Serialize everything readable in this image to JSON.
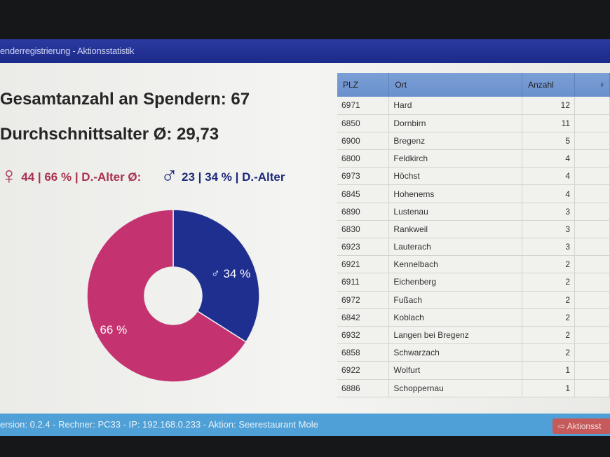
{
  "window": {
    "title": "enderregistrierung - Aktionsstatistik"
  },
  "summary": {
    "total": "Gesamtanzahl an Spendern: 67",
    "avg_age": "Durchschnittsalter Ø: 29,73",
    "female_symbol": "♀",
    "female_text": "44 | 66 % | D.-Alter Ø:",
    "male_symbol": "♂",
    "male_text": "23 | 34 % | D.-Alter"
  },
  "chart_data": {
    "type": "pie",
    "donut": true,
    "slices": [
      {
        "label": "♂ 34 %",
        "value": 34,
        "color": "#1f2f8f"
      },
      {
        "label": "♀ 66 %",
        "value": 66,
        "color": "#c4336f"
      }
    ]
  },
  "table": {
    "headers": [
      "PLZ",
      "Ort",
      "Anzahl",
      "♀"
    ],
    "rows": [
      [
        "6971",
        "Hard",
        "12"
      ],
      [
        "6850",
        "Dornbirn",
        "11"
      ],
      [
        "6900",
        "Bregenz",
        "5"
      ],
      [
        "6800",
        "Feldkirch",
        "4"
      ],
      [
        "6973",
        "Höchst",
        "4"
      ],
      [
        "6845",
        "Hohenems",
        "4"
      ],
      [
        "6890",
        "Lustenau",
        "3"
      ],
      [
        "6830",
        "Rankweil",
        "3"
      ],
      [
        "6923",
        "Lauterach",
        "3"
      ],
      [
        "6921",
        "Kennelbach",
        "2"
      ],
      [
        "6911",
        "Eichenberg",
        "2"
      ],
      [
        "6972",
        "Fußach",
        "2"
      ],
      [
        "6842",
        "Koblach",
        "2"
      ],
      [
        "6932",
        "Langen bei Bregenz",
        "2"
      ],
      [
        "6858",
        "Schwarzach",
        "2"
      ],
      [
        "6922",
        "Wolfurt",
        "1"
      ],
      [
        "6886",
        "Schoppernau",
        "1"
      ]
    ]
  },
  "footer": {
    "status": "ersion: 0.2.4 - Rechner: PC33 - IP: 192.168.0.233 - Aktion: Seerestaurant Mole",
    "exit_label": "Aktionsst",
    "exit_icon": "sign-out-icon"
  }
}
